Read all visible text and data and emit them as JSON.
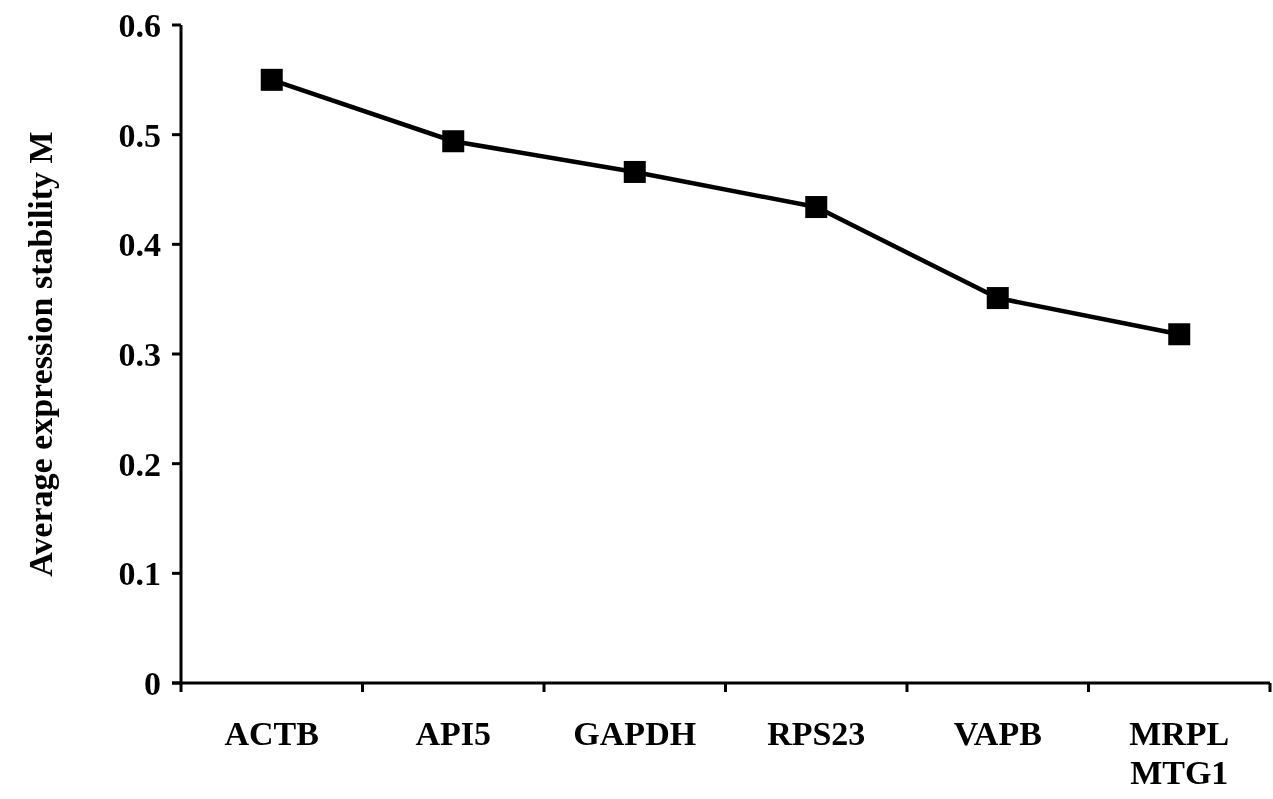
{
  "chart_data": {
    "type": "line",
    "ylabel": "Average expression stability M",
    "categories": [
      "ACTB",
      "API5",
      "GAPDH",
      "RPS23",
      "VAPB",
      "MRPL\nMTG1"
    ],
    "series": [
      {
        "color": "#000000",
        "values": [
          0.55,
          0.494,
          0.466,
          0.434,
          0.351,
          0.318
        ]
      }
    ],
    "ylim": [
      0,
      0.6
    ],
    "yticks": [
      0,
      0.1,
      0.2,
      0.3,
      0.4,
      0.5,
      0.6
    ],
    "marker": "square",
    "line_style": "solid"
  }
}
